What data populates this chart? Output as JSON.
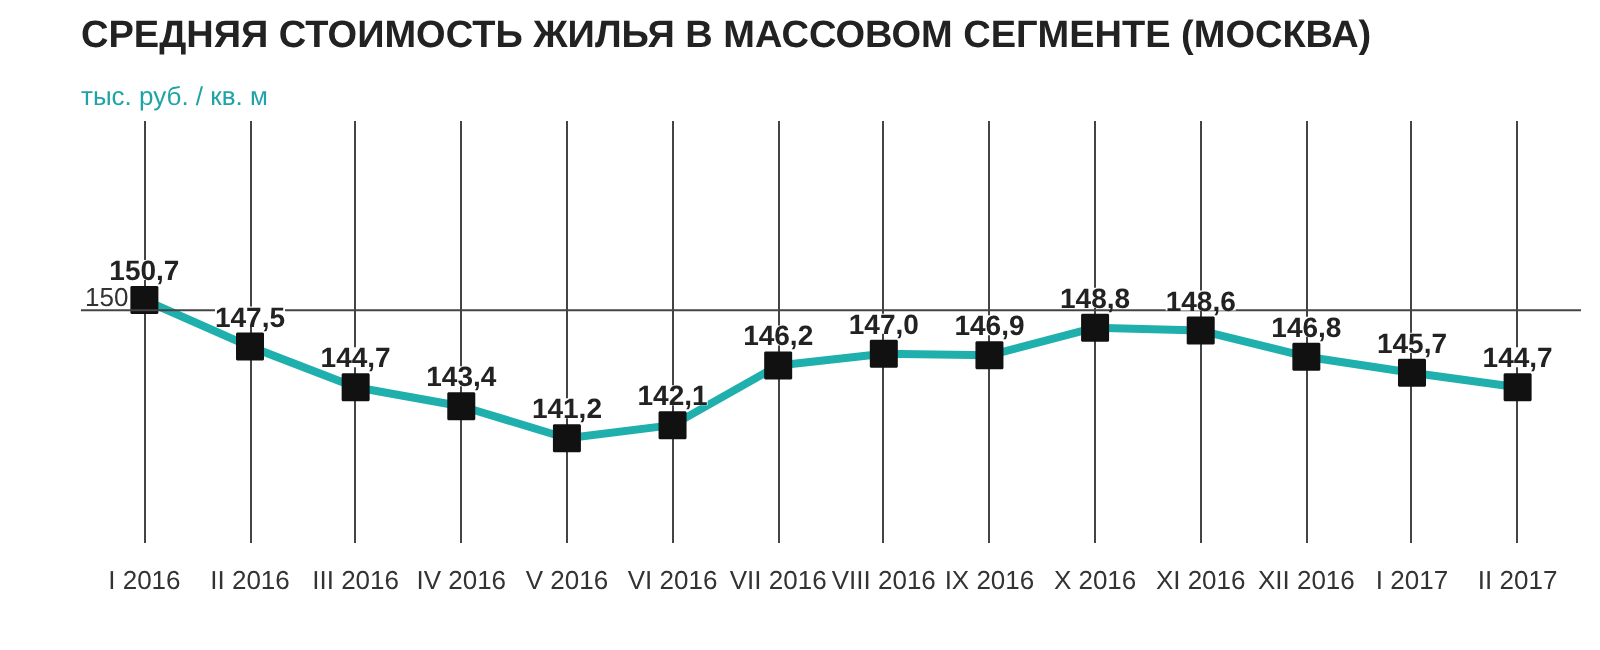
{
  "chart_data": {
    "type": "line",
    "title": "СРЕДНЯЯ СТОИМОСТЬ ЖИЛЬЯ В МАССОВОМ СЕГМЕНТЕ (МОСКВА)",
    "subtitle": "тыс. руб. / кв. м",
    "categories": [
      "I 2016",
      "II 2016",
      "III 2016",
      "IV 2016",
      "V 2016",
      "VI 2016",
      "VII 2016",
      "VIII 2016",
      "IX 2016",
      "X 2016",
      "XI 2016",
      "XII 2016",
      "I 2017",
      "II 2017"
    ],
    "series": [
      {
        "color": "#1fb0ad",
        "values": [
          150.7,
          147.5,
          144.7,
          143.4,
          141.2,
          142.1,
          146.2,
          147.0,
          146.9,
          148.8,
          148.6,
          146.8,
          145.7,
          144.7
        ],
        "value_labels": [
          "150,7",
          "147,5",
          "144,7",
          "143,4",
          "141,2",
          "142,1",
          "146,2",
          "147,0",
          "146,9",
          "148,8",
          "148,6",
          "146,8",
          "145,7",
          "144,7"
        ]
      }
    ],
    "ylim": [
      134,
      163
    ],
    "ref_lines": [
      {
        "axis": "y",
        "value": 150,
        "label": "150",
        "color": "#444444"
      }
    ],
    "grid": "x",
    "marker": "square",
    "line_style": "solid"
  }
}
